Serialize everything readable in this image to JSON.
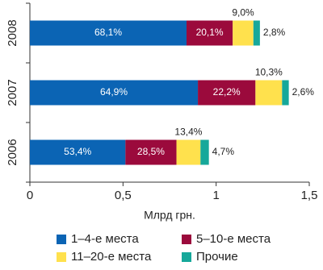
{
  "chart_data": {
    "type": "stacked-bar-horizontal",
    "categories": [
      "2008",
      "2007",
      "2006"
    ],
    "series": [
      {
        "name": "1–4-е места",
        "color": "#0b64b4",
        "values": [
          0.841,
          0.902,
          0.513
        ],
        "share_labels": [
          "68,1%",
          "64,9%",
          "53,4%"
        ]
      },
      {
        "name": "5–10-е места",
        "color": "#9b0a3c",
        "values": [
          0.248,
          0.309,
          0.274
        ],
        "share_labels": [
          "20,1%",
          "22,2%",
          "28,5%"
        ]
      },
      {
        "name": "11–20-е места",
        "color": "#ffe14d",
        "values": [
          0.111,
          0.143,
          0.129
        ],
        "share_labels": [
          "9,0%",
          "10,3%",
          "13,4%"
        ]
      },
      {
        "name": "Прочие",
        "color": "#16a89a",
        "values": [
          0.035,
          0.036,
          0.045
        ],
        "share_labels": [
          "2,8%",
          "2,6%",
          "4,7%"
        ]
      }
    ],
    "x_label": "Млрд грн.",
    "xlim": [
      0,
      1.5
    ],
    "xticks": [
      0,
      {
        "value": 0.5,
        "label": "0,5"
      },
      1,
      {
        "value": 1.5,
        "label": "1,5"
      }
    ]
  }
}
